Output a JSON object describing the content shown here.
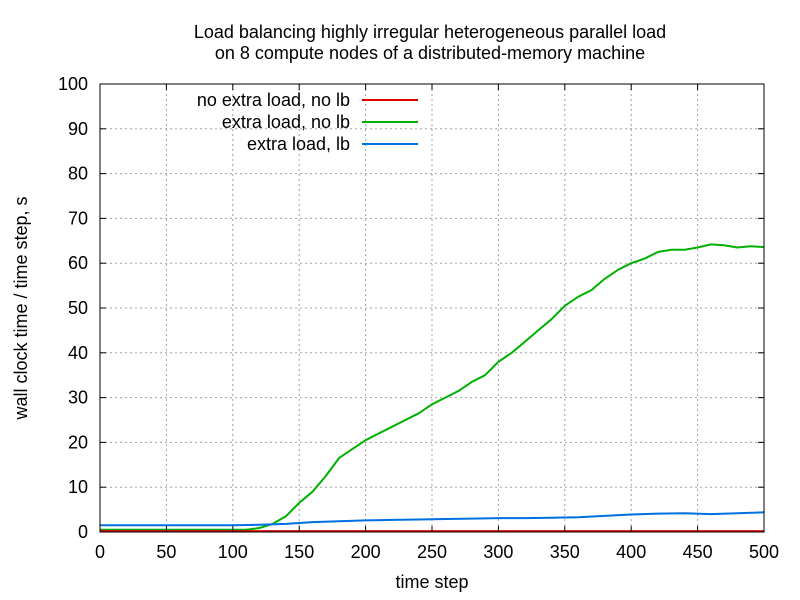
{
  "chart_data": {
    "type": "line",
    "title_lines": [
      "Load balancing highly irregular heterogeneous parallel load",
      "on 8 compute nodes of a distributed-memory machine"
    ],
    "xlabel": "time step",
    "ylabel": "wall clock time / time step, s",
    "xlim": [
      0,
      500
    ],
    "ylim": [
      0,
      100
    ],
    "xticks": [
      0,
      50,
      100,
      150,
      200,
      250,
      300,
      350,
      400,
      450,
      500
    ],
    "yticks": [
      0,
      10,
      20,
      30,
      40,
      50,
      60,
      70,
      80,
      90,
      100
    ],
    "grid": true,
    "legend_position": "top-left",
    "series": [
      {
        "name": "no extra load, no lb",
        "color": "#e00000",
        "x": [
          0,
          50,
          100,
          150,
          200,
          250,
          300,
          350,
          400,
          450,
          500
        ],
        "y": [
          0.2,
          0.2,
          0.2,
          0.2,
          0.2,
          0.2,
          0.2,
          0.2,
          0.2,
          0.2,
          0.2
        ]
      },
      {
        "name": "extra load, no lb",
        "color": "#00b000",
        "x": [
          0,
          110,
          120,
          130,
          140,
          150,
          160,
          170,
          180,
          190,
          200,
          210,
          220,
          230,
          240,
          250,
          260,
          270,
          280,
          290,
          300,
          310,
          320,
          330,
          340,
          350,
          360,
          370,
          380,
          390,
          400,
          410,
          420,
          430,
          440,
          450,
          460,
          470,
          480,
          490,
          500
        ],
        "y": [
          0.5,
          0.5,
          0.9,
          1.8,
          3.5,
          6.5,
          9.0,
          12.5,
          16.5,
          18.5,
          20.5,
          22.0,
          23.5,
          25.0,
          26.5,
          28.5,
          30.0,
          31.5,
          33.5,
          35.0,
          38.0,
          40.0,
          42.5,
          45.0,
          47.5,
          50.5,
          52.5,
          54.0,
          56.5,
          58.5,
          60.0,
          61.0,
          62.5,
          63.0,
          63.0,
          63.5,
          64.2,
          64.0,
          63.5,
          63.8,
          63.6
        ]
      },
      {
        "name": "extra load, lb",
        "color": "#0070e0",
        "x": [
          0,
          50,
          100,
          120,
          140,
          160,
          180,
          200,
          220,
          240,
          260,
          280,
          300,
          320,
          340,
          360,
          380,
          400,
          420,
          440,
          460,
          480,
          500
        ],
        "y": [
          1.5,
          1.5,
          1.5,
          1.6,
          1.8,
          2.2,
          2.4,
          2.6,
          2.7,
          2.8,
          2.9,
          3.0,
          3.1,
          3.1,
          3.2,
          3.3,
          3.6,
          3.9,
          4.1,
          4.2,
          4.0,
          4.2,
          4.4
        ]
      }
    ]
  }
}
